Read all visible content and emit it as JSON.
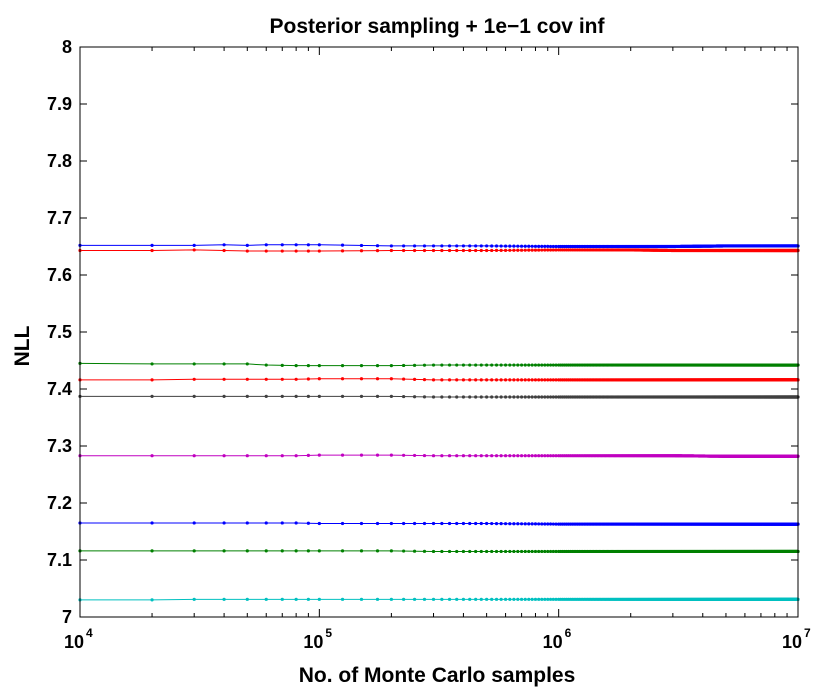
{
  "chart_data": {
    "type": "line",
    "title": "Posterior sampling + 1e−1 cov inf",
    "xlabel": "No. of Monte Carlo samples",
    "ylabel": "NLL",
    "xscale": "log",
    "xlim": [
      10000,
      10000000
    ],
    "ylim": [
      7.0,
      8.0
    ],
    "x_ticks": [
      {
        "value": 10000,
        "base": "10",
        "exp": "4"
      },
      {
        "value": 100000,
        "base": "10",
        "exp": "5"
      },
      {
        "value": 1000000,
        "base": "10",
        "exp": "6"
      },
      {
        "value": 10000000,
        "base": "10",
        "exp": "7"
      }
    ],
    "y_ticks": [
      "7",
      "7.1",
      "7.2",
      "7.3",
      "7.4",
      "7.5",
      "7.6",
      "7.7",
      "7.8",
      "7.9",
      "8"
    ],
    "grid": false,
    "legend": "none",
    "series": [
      {
        "color": "#0000ff",
        "values": [
          7.652,
          7.652,
          7.652,
          7.653,
          7.652,
          7.653,
          7.653,
          7.653,
          7.651,
          7.651,
          7.651,
          7.65,
          7.65,
          7.65,
          7.651,
          7.651
        ]
      },
      {
        "color": "#ff0000",
        "values": [
          7.643,
          7.643,
          7.644,
          7.643,
          7.642,
          7.642,
          7.642,
          7.642,
          7.643,
          7.643,
          7.643,
          7.644,
          7.644,
          7.643,
          7.643,
          7.643
        ]
      },
      {
        "color": "#008000",
        "values": [
          7.445,
          7.444,
          7.444,
          7.444,
          7.444,
          7.442,
          7.441,
          7.441,
          7.441,
          7.442,
          7.442,
          7.442,
          7.442,
          7.442,
          7.442,
          7.442
        ]
      },
      {
        "color": "#ff0000",
        "values": [
          7.416,
          7.416,
          7.417,
          7.417,
          7.417,
          7.417,
          7.417,
          7.418,
          7.418,
          7.416,
          7.416,
          7.416,
          7.416,
          7.416,
          7.416,
          7.416
        ]
      },
      {
        "color": "#404040",
        "values": [
          7.387,
          7.387,
          7.387,
          7.387,
          7.387,
          7.387,
          7.387,
          7.387,
          7.387,
          7.386,
          7.386,
          7.386,
          7.386,
          7.386,
          7.386,
          7.386
        ]
      },
      {
        "color": "#c000c0",
        "values": [
          7.283,
          7.283,
          7.283,
          7.283,
          7.283,
          7.283,
          7.283,
          7.284,
          7.284,
          7.283,
          7.283,
          7.283,
          7.283,
          7.283,
          7.282,
          7.282
        ]
      },
      {
        "color": "#0000ff",
        "values": [
          7.165,
          7.165,
          7.165,
          7.165,
          7.165,
          7.165,
          7.165,
          7.164,
          7.164,
          7.164,
          7.164,
          7.163,
          7.163,
          7.163,
          7.163,
          7.163
        ]
      },
      {
        "color": "#008000",
        "values": [
          7.116,
          7.116,
          7.116,
          7.116,
          7.116,
          7.116,
          7.116,
          7.116,
          7.116,
          7.115,
          7.115,
          7.115,
          7.115,
          7.115,
          7.115,
          7.115
        ]
      },
      {
        "color": "#00c0c0",
        "values": [
          7.03,
          7.03,
          7.031,
          7.031,
          7.031,
          7.031,
          7.031,
          7.031,
          7.031,
          7.031,
          7.031,
          7.031,
          7.031,
          7.031,
          7.031,
          7.031
        ]
      }
    ],
    "x": [
      10000,
      20000,
      30000,
      40000,
      50000,
      60000,
      80000,
      100000,
      200000,
      300000,
      500000,
      1000000,
      2000000,
      3000000,
      5000000,
      10000000
    ]
  }
}
